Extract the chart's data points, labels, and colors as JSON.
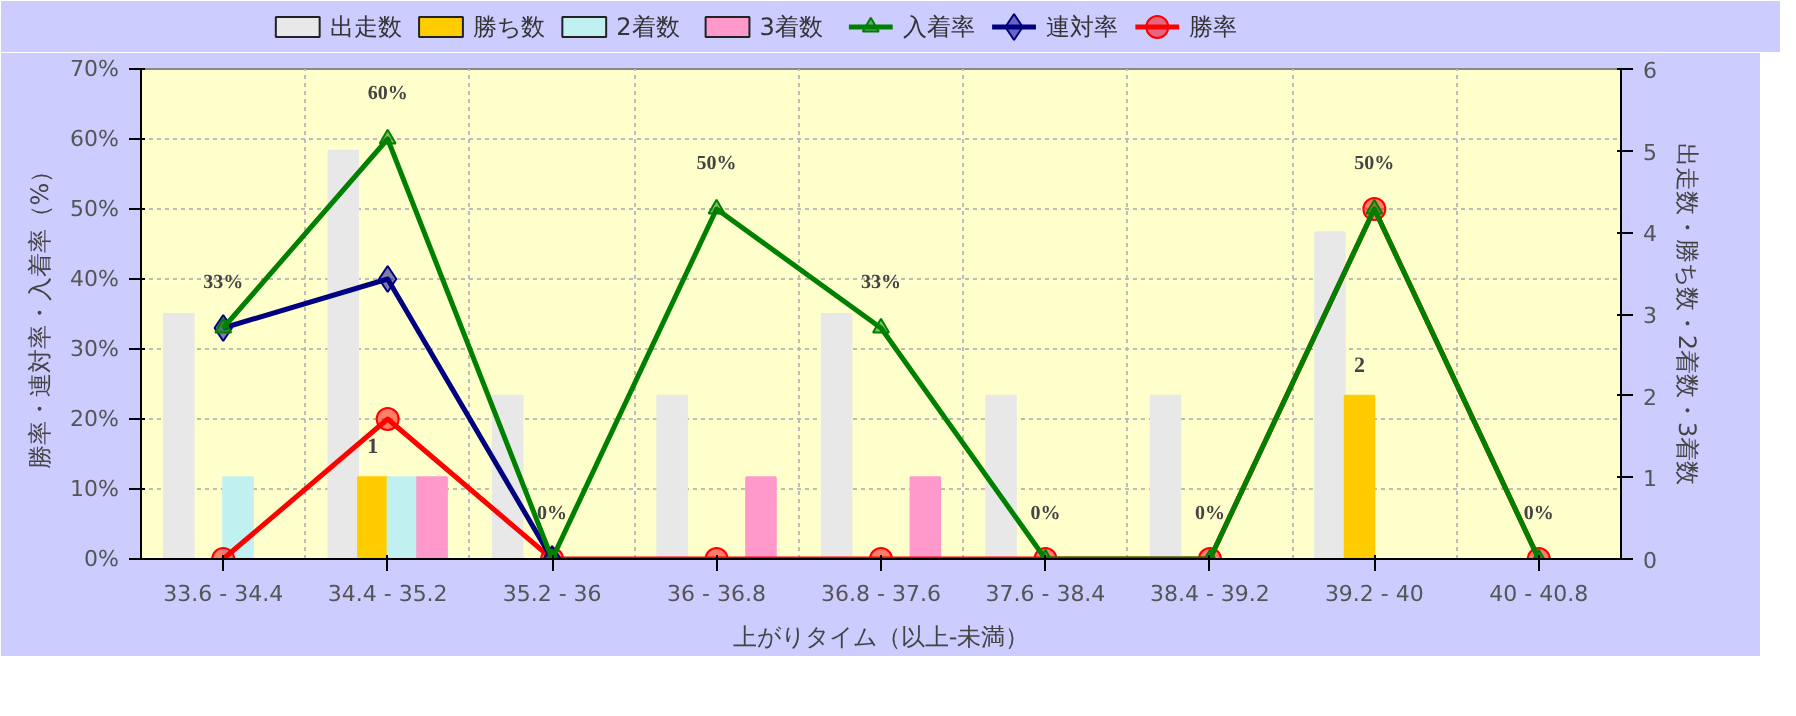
{
  "chart_data": {
    "type": "bar",
    "xlabel": "上がりタイム（以上-未満）",
    "ylabel": "勝率・連対率・入着率（%）",
    "y2label": "出走数・勝ち数・2着数・3着数",
    "categories": [
      "33.6 - 34.4",
      "34.4 - 35.2",
      "35.2 - 36",
      "36 - 36.8",
      "36.8 - 37.6",
      "37.6 - 38.4",
      "38.4 - 39.2",
      "39.2 - 40",
      "40 - 40.8"
    ],
    "series": [
      {
        "name": "出走数",
        "axis": "y2",
        "color": "#e8e8e8",
        "values": [
          3,
          5,
          2,
          2,
          3,
          2,
          2,
          4,
          0
        ]
      },
      {
        "name": "勝ち数",
        "axis": "y2",
        "color": "#ffcc00",
        "values": [
          0,
          1,
          0,
          0,
          0,
          0,
          0,
          2,
          0
        ],
        "value_labels": [
          null,
          "1",
          null,
          null,
          null,
          null,
          null,
          "2",
          null
        ]
      },
      {
        "name": "2着数",
        "axis": "y2",
        "color": "#c0f0f0",
        "values": [
          1,
          1,
          0,
          0,
          0,
          0,
          0,
          0,
          0
        ]
      },
      {
        "name": "3着数",
        "axis": "y2",
        "color": "#ff99cc",
        "values": [
          0,
          1,
          0,
          1,
          1,
          0,
          0,
          0,
          0
        ]
      },
      {
        "name": "入着率",
        "type": "line",
        "color": "#008000",
        "marker": "triangle",
        "values": [
          33,
          60,
          0,
          50,
          33,
          0,
          0,
          50,
          0
        ],
        "value_labels": [
          "33%",
          "60%",
          "0%",
          "50%",
          "33%",
          "0%",
          "0%",
          "50%",
          "0%"
        ]
      },
      {
        "name": "連対率",
        "type": "line",
        "color": "#000080",
        "marker": "diamond",
        "values": [
          33,
          40,
          0,
          null,
          null,
          null,
          null,
          null,
          null
        ]
      },
      {
        "name": "勝率",
        "type": "line",
        "color": "#ff0000",
        "marker": "circle",
        "values": [
          0,
          20,
          0,
          0,
          0,
          0,
          0,
          50,
          0
        ]
      }
    ],
    "ylim": [
      0,
      70
    ],
    "yticks": [
      {
        "value": 0,
        "label": "0%"
      },
      {
        "value": 10,
        "label": "10%"
      },
      {
        "value": 20,
        "label": "20%"
      },
      {
        "value": 30,
        "label": "30%"
      },
      {
        "value": 40,
        "label": "40%"
      },
      {
        "value": 50,
        "label": "50%"
      },
      {
        "value": 60,
        "label": "60%"
      },
      {
        "value": 70,
        "label": "70%"
      }
    ],
    "y2lim": [
      0,
      6
    ],
    "y2ticks": [
      0,
      1,
      2,
      3,
      4,
      5,
      6
    ],
    "grid": true,
    "legend": "top",
    "line_style": "solid"
  }
}
